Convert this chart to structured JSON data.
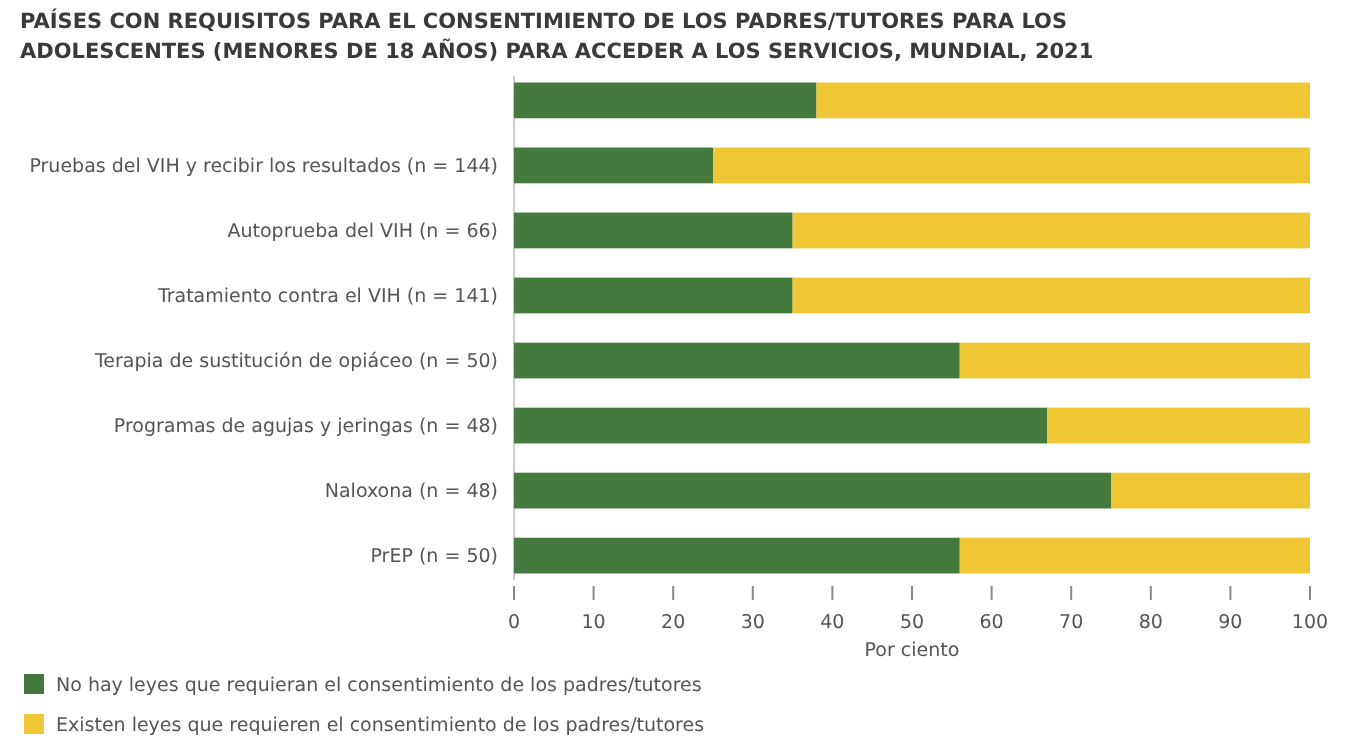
{
  "chart_data": {
    "type": "bar",
    "orientation": "horizontal",
    "stacked": true,
    "title": "PAÍSES CON REQUISITOS PARA EL CONSENTIMIENTO DE LOS PADRES/TUTORES PARA LOS ADOLESCENTES (MENORES DE 18 AÑOS) PARA ACCEDER A LOS SERVICIOS, MUNDIAL, 2021",
    "categories": [
      null,
      "Pruebas del VIH y recibir los resultados (n = 144)",
      "Autoprueba del VIH (n = 66)",
      "Tratamiento contra el VIH (n = 141)",
      "Terapia de sustitución de opiáceo (n = 50)",
      "Programas de agujas y jeringas (n = 48)",
      "Naloxona (n = 48)",
      "PrEP (n = 50)"
    ],
    "series": [
      {
        "name": "No hay leyes que requieran el consentimiento de los padres/tutores",
        "color": "#457a3f",
        "values": [
          38,
          25,
          35,
          35,
          56,
          67,
          75,
          56
        ]
      },
      {
        "name": "Existen leyes que requieren el consentimiento de los padres/tutores",
        "color": "#efc633",
        "values": [
          62,
          75,
          65,
          65,
          44,
          33,
          25,
          44
        ]
      }
    ],
    "xlim": [
      0,
      100
    ],
    "xticks": [
      0,
      10,
      20,
      30,
      40,
      50,
      60,
      70,
      80,
      90,
      100
    ],
    "xlabel": "Por ciento",
    "legend": "bottom left",
    "grid": false
  }
}
